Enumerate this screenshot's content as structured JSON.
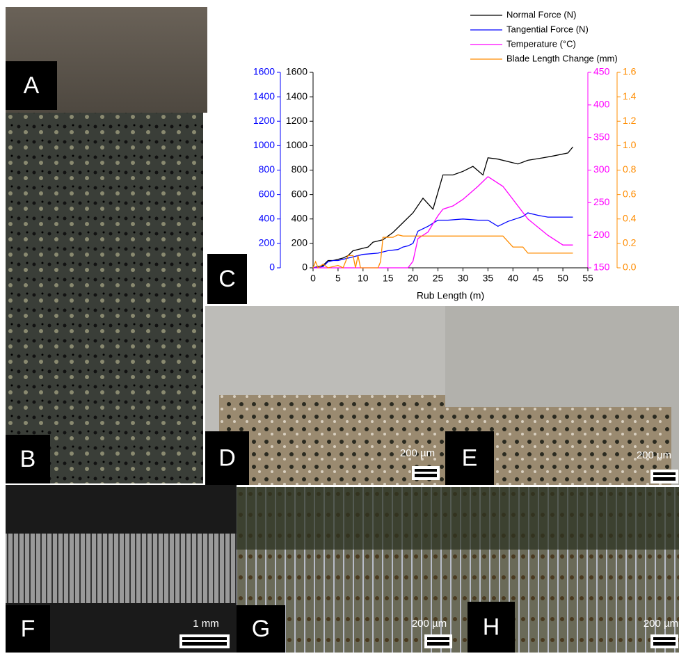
{
  "panels": {
    "labels": [
      "A",
      "B",
      "C",
      "D",
      "E",
      "F",
      "G",
      "H"
    ],
    "scale_bars": {
      "D": "200 µm",
      "E": "200 µm",
      "F": "1 mm",
      "G": "200 µm",
      "H": "200 µm"
    }
  },
  "chart_data": {
    "type": "line",
    "x_label": "Rub Length (m)",
    "xlim": [
      0,
      55
    ],
    "xticks": [
      0,
      5,
      10,
      15,
      20,
      25,
      30,
      35,
      40,
      45,
      50,
      55
    ],
    "axes": [
      {
        "color": "#0000ff",
        "side": "left",
        "lim": [
          0,
          1600
        ],
        "ticks": [
          0,
          200,
          400,
          600,
          800,
          1000,
          1200,
          1400,
          1600
        ]
      },
      {
        "color": "#000000",
        "side": "left",
        "lim": [
          0,
          1600
        ],
        "ticks": [
          0,
          200,
          400,
          600,
          800,
          1000,
          1200,
          1400,
          1600
        ]
      },
      {
        "color": "#ff00ff",
        "side": "right",
        "lim": [
          150,
          450
        ],
        "ticks": [
          150,
          200,
          250,
          300,
          350,
          400,
          450
        ]
      },
      {
        "color": "#ff8c00",
        "side": "right",
        "lim": [
          0,
          1.6
        ],
        "ticks": [
          {
            "value": 0,
            "label": "0.0"
          },
          0.2,
          0.4,
          0.6,
          0.8,
          {
            "value": 1,
            "label": "1.0"
          },
          1.2,
          1.4,
          1.6
        ]
      }
    ],
    "series": [
      {
        "name": "Normal Force (N)",
        "color": "#000000",
        "axis": 1,
        "x": [
          0,
          1,
          2,
          3,
          4,
          5,
          6,
          7,
          8,
          10,
          11,
          12,
          13,
          14,
          16,
          18,
          20,
          22,
          24,
          26,
          28,
          30,
          32,
          34,
          35,
          37,
          41,
          43,
          46,
          48,
          51,
          52
        ],
        "values": [
          0,
          10,
          20,
          60,
          60,
          70,
          80,
          100,
          140,
          160,
          170,
          210,
          220,
          230,
          290,
          370,
          450,
          570,
          480,
          760,
          760,
          790,
          830,
          760,
          900,
          890,
          850,
          880,
          900,
          915,
          940,
          990
        ]
      },
      {
        "name": "Tangential Force (N)",
        "color": "#0000ff",
        "axis": 0,
        "x": [
          0,
          2,
          3,
          4,
          5,
          6,
          8,
          10,
          13,
          15,
          17,
          18,
          19,
          20,
          21,
          23,
          25,
          27,
          30,
          33,
          35,
          37,
          39,
          42,
          43,
          45,
          47,
          52
        ],
        "values": [
          0,
          10,
          50,
          60,
          60,
          70,
          90,
          110,
          120,
          140,
          150,
          170,
          180,
          200,
          300,
          340,
          390,
          390,
          400,
          390,
          390,
          340,
          380,
          420,
          450,
          430,
          415,
          415
        ]
      },
      {
        "name": "Temperature (°C)",
        "color": "#ff00ff",
        "axis": 2,
        "x": [
          0,
          19,
          20,
          21,
          23,
          25,
          26,
          28,
          30,
          33,
          35,
          36,
          38,
          40,
          43,
          47,
          50,
          52
        ],
        "values": [
          150,
          150,
          160,
          195,
          205,
          230,
          240,
          245,
          255,
          275,
          290,
          285,
          275,
          255,
          225,
          200,
          185,
          185
        ]
      },
      {
        "name": "Blade Length Change (mm)",
        "color": "#ff8c00",
        "axis": 3,
        "x": [
          0,
          0.5,
          1,
          2,
          3,
          5,
          6,
          7,
          8,
          8.5,
          9,
          9.5,
          13,
          13.5,
          14,
          16,
          17,
          18,
          38,
          40,
          42,
          43,
          46,
          52
        ],
        "values": [
          0,
          0.05,
          0,
          0.03,
          0,
          0.02,
          0,
          0.1,
          0.1,
          0,
          0.1,
          0,
          0,
          0.05,
          0.25,
          0.25,
          0.27,
          0.26,
          0.26,
          0.17,
          0.17,
          0.12,
          0.12,
          0.12
        ]
      }
    ]
  }
}
